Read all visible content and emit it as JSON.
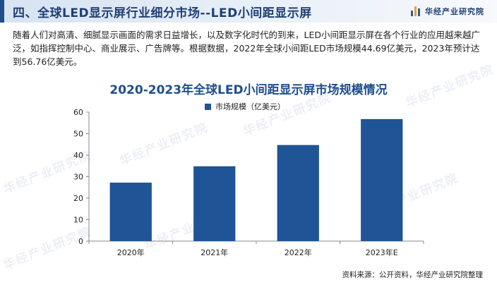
{
  "header": {
    "title": "四、全球LED显示屏行业细分市场--LED小间距显示屏",
    "brand": "华经产业研究院"
  },
  "description": "随着人们对高清、细腻显示画面的需求日益增长，以及数字化时代的到来，LED小间距显示屏在各个行业的应用越来越广泛，如指挥控制中心、商业展示、广告牌等。根据数据，2022年全球小间距LED市场规模44.69亿美元，2023年预计达到56.76亿美元。",
  "watermark": "华经产业研究院",
  "chart_data": {
    "type": "bar",
    "title": "2020-2023年全球LED小间距显示屏市场规模情况",
    "categories": [
      "2020年",
      "2021年",
      "2022年",
      "2023年E"
    ],
    "series": [
      {
        "name": "市场规模（亿美元）",
        "values": [
          27.2,
          34.8,
          44.69,
          56.76
        ],
        "color": "#1f5496"
      }
    ],
    "ylim": [
      0,
      60
    ],
    "yticks": [
      0,
      10,
      20,
      30,
      40,
      50,
      60
    ],
    "grid": false,
    "legend_position": "top-center"
  },
  "source": "资料来源：公开资料，华经产业研究院整理"
}
